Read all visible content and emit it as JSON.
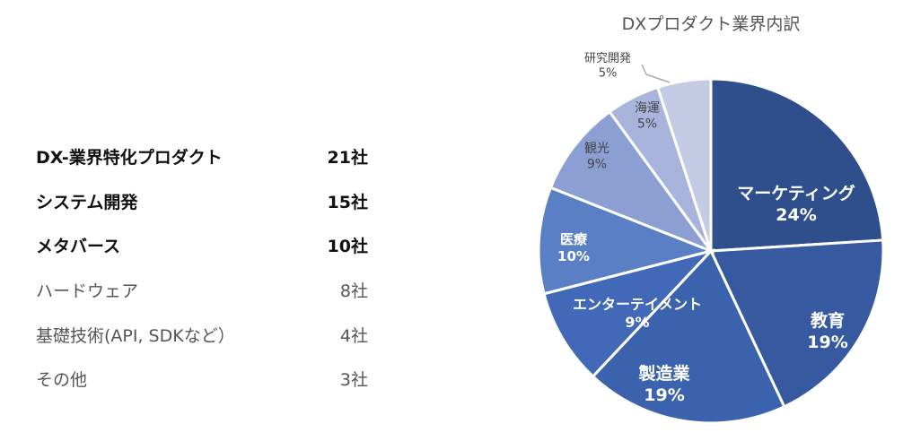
{
  "table": {
    "rows": [
      {
        "label": "DX-業界特化プロダクト",
        "count": "21社",
        "bold": true
      },
      {
        "label": "システム開発",
        "count": "15社",
        "bold": true
      },
      {
        "label": "メタバース",
        "count": "10社",
        "bold": true
      },
      {
        "label": "ハードウェア",
        "count": "8社",
        "bold": false
      },
      {
        "label": "基礎技術(API, SDKなど）",
        "count": "4社",
        "bold": false
      },
      {
        "label": "その他",
        "count": "3社",
        "bold": false
      }
    ]
  },
  "chart_data": {
    "type": "pie",
    "title": "DXプロダクト業界内訳",
    "slices": [
      {
        "label": "マーケティング",
        "value": 24,
        "pct_label": "24%",
        "color": "#2e4f8c"
      },
      {
        "label": "教育",
        "value": 19,
        "pct_label": "19%",
        "color": "#3659a0"
      },
      {
        "label": "製造業",
        "value": 19,
        "pct_label": "19%",
        "color": "#3b62ac"
      },
      {
        "label": "エンターテイメント",
        "value": 9,
        "pct_label": "9%",
        "color": "#4169b8"
      },
      {
        "label": "医療",
        "value": 10,
        "pct_label": "10%",
        "color": "#5b7fc4"
      },
      {
        "label": "観光",
        "value": 9,
        "pct_label": "9%",
        "color": "#8c9fd2"
      },
      {
        "label": "海運",
        "value": 5,
        "pct_label": "5%",
        "color": "#a8b4dc"
      },
      {
        "label": "研究開発",
        "value": 5,
        "pct_label": "5%",
        "color": "#c4cbe5"
      }
    ]
  }
}
